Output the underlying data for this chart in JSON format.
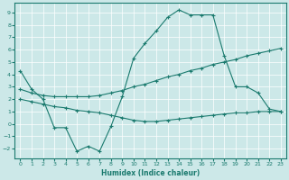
{
  "xlabel": "Humidex (Indice chaleur)",
  "xlim": [
    -0.5,
    23.5
  ],
  "ylim": [
    -2.8,
    9.8
  ],
  "yticks": [
    -2,
    -1,
    0,
    1,
    2,
    3,
    4,
    5,
    6,
    7,
    8,
    9
  ],
  "xticks": [
    0,
    1,
    2,
    3,
    4,
    5,
    6,
    7,
    8,
    9,
    10,
    11,
    12,
    13,
    14,
    15,
    16,
    17,
    18,
    19,
    20,
    21,
    22,
    23
  ],
  "color": "#1a7a6e",
  "bg_color": "#cce8e8",
  "grid_color": "#ffffff",
  "upper_x": [
    0,
    1,
    2,
    3,
    4,
    5,
    6,
    7,
    8,
    9,
    10,
    11,
    12,
    13,
    14,
    15,
    16,
    17,
    18,
    19,
    20,
    21,
    22,
    23
  ],
  "upper_y": [
    4.3,
    2.8,
    2.0,
    -0.3,
    -0.3,
    -2.2,
    -1.8,
    -2.2,
    -0.2,
    2.2,
    5.3,
    6.5,
    7.5,
    8.6,
    9.2,
    8.8,
    8.8,
    8.8,
    5.5,
    3.0,
    3.0,
    2.5,
    1.2,
    1.0
  ],
  "mid_x": [
    0,
    1,
    2,
    3,
    4,
    5,
    6,
    7,
    8,
    9,
    10,
    11,
    12,
    13,
    14,
    15,
    16,
    17,
    18,
    19,
    20,
    21,
    22,
    23
  ],
  "mid_y": [
    2.8,
    2.5,
    2.3,
    2.2,
    2.2,
    2.2,
    2.2,
    2.3,
    2.5,
    2.7,
    3.0,
    3.2,
    3.5,
    3.8,
    4.0,
    4.3,
    4.5,
    4.8,
    5.0,
    5.2,
    5.5,
    5.7,
    5.9,
    6.1
  ],
  "low_x": [
    0,
    1,
    2,
    3,
    4,
    5,
    6,
    7,
    8,
    9,
    10,
    11,
    12,
    13,
    14,
    15,
    16,
    17,
    18,
    19,
    20,
    21,
    22,
    23
  ],
  "low_y": [
    2.0,
    1.8,
    1.6,
    1.4,
    1.3,
    1.1,
    1.0,
    0.9,
    0.7,
    0.5,
    0.3,
    0.2,
    0.2,
    0.3,
    0.4,
    0.5,
    0.6,
    0.7,
    0.8,
    0.9,
    0.9,
    1.0,
    1.0,
    1.0
  ]
}
